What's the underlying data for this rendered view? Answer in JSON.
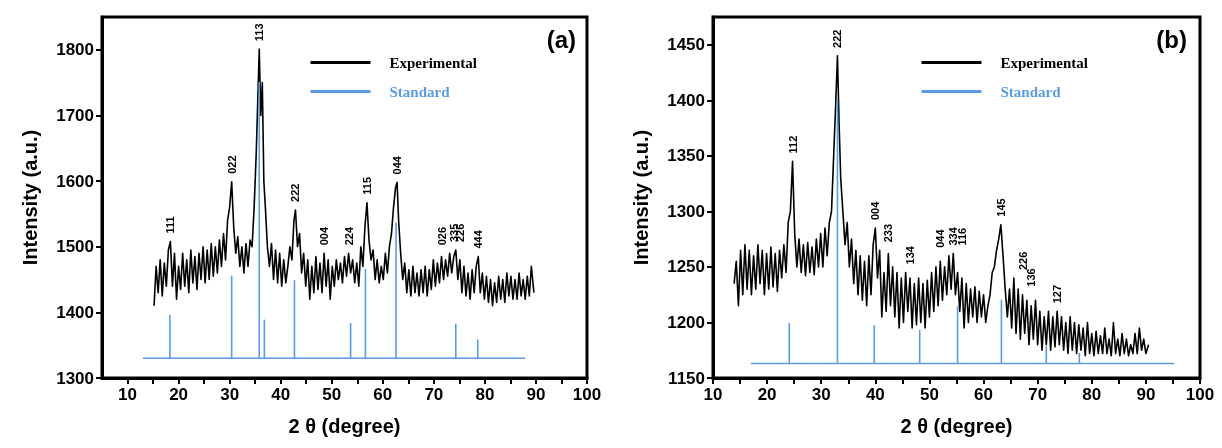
{
  "chart_data": [
    {
      "type": "line",
      "title": "(a)",
      "xlabel": "2 θ (degree)",
      "ylabel": "Intensity (a.u.)",
      "xlim": [
        5,
        100
      ],
      "ylim": [
        1300,
        1850
      ],
      "xticks": [
        10,
        {
          "value": 15,
          "label": null
        },
        20,
        {
          "value": 25,
          "label": null
        },
        30,
        {
          "value": 35,
          "label": null
        },
        40,
        {
          "value": 45,
          "label": null
        },
        50,
        {
          "value": 55,
          "label": null
        },
        60,
        {
          "value": 65,
          "label": null
        },
        70,
        {
          "value": 75,
          "label": null
        },
        80,
        {
          "value": 85,
          "label": null
        },
        90,
        {
          "value": 95,
          "label": null
        },
        100
      ],
      "yticks": [
        1300,
        1400,
        1500,
        1600,
        1700,
        1800
      ],
      "grid": false,
      "legend": "top",
      "marker": "none",
      "line_style": "solid",
      "series": [
        {
          "name": "Experimental",
          "color": "#000000",
          "x": [
            15.2,
            15.6,
            16.0,
            16.4,
            16.8,
            17.2,
            17.6,
            18.0,
            18.4,
            18.8,
            19.2,
            19.6,
            20.0,
            20.4,
            20.8,
            21.2,
            21.6,
            22.0,
            22.4,
            22.8,
            23.2,
            23.6,
            24.0,
            24.4,
            24.8,
            25.2,
            25.6,
            26.0,
            26.4,
            26.8,
            27.2,
            27.6,
            28.0,
            28.4,
            28.8,
            29.2,
            29.6,
            30.0,
            30.4,
            30.8,
            31.2,
            31.6,
            32.0,
            32.4,
            32.8,
            33.2,
            33.6,
            34.0,
            34.4,
            34.8,
            35.2,
            35.5,
            35.8,
            36.1,
            36.4,
            36.7,
            37.0,
            37.4,
            37.8,
            38.2,
            38.6,
            39.0,
            39.4,
            39.8,
            40.2,
            40.6,
            41.0,
            41.4,
            41.8,
            42.2,
            42.6,
            42.9,
            43.3,
            43.7,
            44.1,
            44.5,
            44.9,
            45.3,
            45.7,
            46.1,
            46.5,
            46.9,
            47.3,
            47.7,
            48.1,
            48.5,
            48.9,
            49.3,
            49.7,
            50.1,
            50.5,
            50.9,
            51.3,
            51.7,
            52.1,
            52.5,
            52.9,
            53.3,
            53.7,
            54.1,
            54.5,
            54.9,
            55.3,
            55.7,
            56.1,
            56.5,
            56.9,
            57.3,
            57.7,
            58.1,
            58.5,
            58.9,
            59.3,
            59.7,
            60.1,
            60.5,
            60.9,
            61.3,
            61.7,
            62.1,
            62.5,
            62.8,
            63.1,
            63.5,
            63.9,
            64.3,
            64.7,
            65.1,
            65.5,
            65.9,
            66.3,
            66.7,
            67.1,
            67.5,
            67.9,
            68.3,
            68.7,
            69.1,
            69.5,
            69.9,
            70.3,
            70.7,
            71.1,
            71.5,
            71.9,
            72.3,
            72.7,
            73.1,
            73.5,
            73.9,
            74.3,
            74.7,
            75.1,
            75.5,
            75.9,
            76.3,
            76.7,
            77.1,
            77.5,
            77.9,
            78.3,
            78.7,
            79.1,
            79.5,
            79.9,
            80.3,
            80.7,
            81.1,
            81.5,
            81.9,
            82.3,
            82.7,
            83.1,
            83.5,
            83.9,
            84.3,
            84.7,
            85.1,
            85.5,
            85.9,
            86.3,
            86.7,
            87.1,
            87.5,
            87.9,
            88.3,
            88.7,
            89.1,
            89.6
          ],
          "values": [
            1410,
            1470,
            1430,
            1480,
            1425,
            1475,
            1440,
            1495,
            1508,
            1440,
            1490,
            1420,
            1470,
            1435,
            1490,
            1440,
            1480,
            1430,
            1495,
            1445,
            1485,
            1435,
            1490,
            1450,
            1500,
            1445,
            1495,
            1450,
            1505,
            1455,
            1500,
            1460,
            1510,
            1470,
            1520,
            1480,
            1540,
            1560,
            1599,
            1530,
            1490,
            1515,
            1470,
            1500,
            1460,
            1505,
            1470,
            1510,
            1500,
            1560,
            1640,
            1720,
            1801,
            1700,
            1750,
            1600,
            1560,
            1500,
            1470,
            1505,
            1450,
            1495,
            1445,
            1490,
            1440,
            1480,
            1445,
            1470,
            1500,
            1480,
            1540,
            1556,
            1500,
            1520,
            1460,
            1490,
            1440,
            1480,
            1420,
            1470,
            1430,
            1485,
            1435,
            1475,
            1430,
            1490,
            1440,
            1480,
            1420,
            1470,
            1440,
            1480,
            1450,
            1475,
            1445,
            1485,
            1455,
            1490,
            1460,
            1480,
            1445,
            1475,
            1440,
            1500,
            1470,
            1530,
            1567,
            1510,
            1480,
            1495,
            1450,
            1480,
            1445,
            1470,
            1450,
            1490,
            1460,
            1500,
            1520,
            1560,
            1590,
            1598,
            1540,
            1490,
            1450,
            1475,
            1430,
            1465,
            1425,
            1470,
            1430,
            1460,
            1425,
            1465,
            1430,
            1470,
            1425,
            1465,
            1435,
            1480,
            1440,
            1475,
            1445,
            1485,
            1450,
            1480,
            1455,
            1490,
            1460,
            1485,
            1495,
            1450,
            1480,
            1430,
            1470,
            1425,
            1460,
            1420,
            1465,
            1430,
            1470,
            1485,
            1430,
            1460,
            1420,
            1455,
            1415,
            1450,
            1410,
            1445,
            1415,
            1455,
            1420,
            1450,
            1415,
            1460,
            1425,
            1455,
            1420,
            1450,
            1420,
            1460,
            1425,
            1450,
            1420,
            1455,
            1425,
            1470,
            1430
          ]
        },
        {
          "name": "Standard",
          "color": "#5b9be0",
          "x": [
            13.0,
            18.3,
            18.3,
            18.3,
            30.4,
            30.4,
            30.4,
            35.8,
            35.8,
            35.8,
            36.8,
            36.8,
            36.8,
            42.7,
            42.7,
            42.7,
            53.7,
            53.7,
            53.7,
            56.6,
            56.6,
            56.6,
            62.6,
            62.6,
            62.6,
            74.3,
            74.3,
            74.3,
            78.6,
            78.6,
            78.6,
            87.9
          ],
          "values": [
            1330,
            1330,
            1395,
            1330,
            1330,
            1455,
            1330,
            1330,
            1750,
            1330,
            1330,
            1388,
            1330,
            1330,
            1448,
            1330,
            1330,
            1383,
            1330,
            1330,
            1465,
            1330,
            1330,
            1536,
            1330,
            1330,
            1382,
            1330,
            1330,
            1358,
            1330,
            1330
          ]
        }
      ],
      "annotations": [
        {
          "text": "111",
          "x": 18.4,
          "y": 1508
        },
        {
          "text": "022",
          "x": 30.4,
          "y": 1599
        },
        {
          "text": "113",
          "x": 35.8,
          "y": 1801
        },
        {
          "text": "222",
          "x": 42.9,
          "y": 1556
        },
        {
          "text": "004",
          "x": 48.5,
          "y": 1490
        },
        {
          "text": "224",
          "x": 53.3,
          "y": 1490
        },
        {
          "text": "115",
          "x": 56.9,
          "y": 1567
        },
        {
          "text": "044",
          "x": 62.8,
          "y": 1598
        },
        {
          "text": "026",
          "x": 71.5,
          "y": 1485
        },
        {
          "text": "335",
          "x": 73.9,
          "y": 1485
        },
        {
          "text": "226",
          "x": 75.1,
          "y": 1480
        },
        {
          "text": "444",
          "x": 78.7,
          "y": 1485
        }
      ]
    },
    {
      "type": "line",
      "title": "(b)",
      "xlabel": "2 θ (degree)",
      "ylabel": "Intensity (a.u.)",
      "xlim": [
        10,
        100
      ],
      "ylim": [
        1150,
        1475
      ],
      "xticks": [
        10,
        {
          "value": 15,
          "label": null
        },
        20,
        {
          "value": 25,
          "label": null
        },
        30,
        {
          "value": 35,
          "label": null
        },
        40,
        {
          "value": 45,
          "label": null
        },
        50,
        {
          "value": 55,
          "label": null
        },
        60,
        {
          "value": 65,
          "label": null
        },
        70,
        {
          "value": 75,
          "label": null
        },
        80,
        {
          "value": 85,
          "label": null
        },
        90,
        {
          "value": 95,
          "label": null
        },
        100
      ],
      "yticks": [
        1150,
        1200,
        1250,
        1300,
        1350,
        1400,
        1450
      ],
      "grid": false,
      "legend": "top",
      "marker": "none",
      "line_style": "solid",
      "series": [
        {
          "name": "Experimental",
          "color": "#000000",
          "x": [
            13.9,
            14.3,
            14.7,
            15.1,
            15.5,
            15.9,
            16.3,
            16.7,
            17.1,
            17.5,
            17.9,
            18.3,
            18.7,
            19.1,
            19.5,
            19.9,
            20.3,
            20.7,
            21.1,
            21.5,
            21.9,
            22.3,
            22.7,
            23.1,
            23.5,
            23.9,
            24.3,
            24.7,
            25.1,
            25.5,
            25.9,
            26.3,
            26.7,
            27.1,
            27.5,
            27.9,
            28.3,
            28.7,
            29.1,
            29.5,
            29.9,
            30.3,
            30.7,
            31.1,
            31.5,
            31.9,
            32.3,
            32.7,
            33.0,
            33.3,
            33.6,
            34.0,
            34.4,
            34.8,
            35.2,
            35.6,
            36.0,
            36.4,
            36.8,
            37.2,
            37.6,
            38.0,
            38.4,
            38.8,
            39.2,
            39.6,
            40.0,
            40.4,
            40.8,
            41.2,
            41.6,
            42.0,
            42.4,
            42.8,
            43.2,
            43.6,
            44.0,
            44.4,
            44.8,
            45.2,
            45.6,
            46.0,
            46.4,
            46.8,
            47.2,
            47.6,
            48.0,
            48.4,
            48.8,
            49.2,
            49.6,
            50.0,
            50.4,
            50.8,
            51.2,
            51.6,
            52.0,
            52.4,
            52.8,
            53.2,
            53.6,
            54.0,
            54.4,
            54.8,
            55.2,
            55.6,
            56.0,
            56.4,
            56.8,
            57.2,
            57.6,
            58.0,
            58.4,
            58.8,
            59.2,
            59.6,
            60.0,
            60.4,
            60.8,
            61.2,
            61.6,
            62.0,
            62.4,
            62.8,
            63.2,
            63.6,
            64.0,
            64.4,
            64.8,
            65.2,
            65.6,
            66.0,
            66.4,
            66.8,
            67.2,
            67.6,
            68.0,
            68.4,
            68.8,
            69.2,
            69.6,
            70.0,
            70.4,
            70.8,
            71.2,
            71.6,
            72.0,
            72.4,
            72.8,
            73.2,
            73.6,
            74.0,
            74.4,
            74.8,
            75.2,
            75.6,
            76.0,
            76.4,
            76.8,
            77.2,
            77.6,
            78.0,
            78.4,
            78.8,
            79.2,
            79.6,
            80.0,
            80.4,
            80.8,
            81.2,
            81.6,
            82.0,
            82.4,
            82.8,
            83.2,
            83.6,
            84.0,
            84.4,
            84.8,
            85.2,
            85.6,
            86.0,
            86.4,
            86.8,
            87.2,
            87.6,
            88.0,
            88.4,
            88.8,
            89.2,
            89.6,
            90.0,
            90.5
          ],
          "values": [
            1235,
            1255,
            1215,
            1265,
            1225,
            1270,
            1230,
            1265,
            1225,
            1260,
            1230,
            1270,
            1235,
            1265,
            1225,
            1262,
            1230,
            1268,
            1232,
            1262,
            1228,
            1265,
            1240,
            1270,
            1245,
            1290,
            1300,
            1345,
            1280,
            1250,
            1275,
            1245,
            1270,
            1242,
            1272,
            1245,
            1268,
            1243,
            1275,
            1250,
            1280,
            1250,
            1285,
            1260,
            1290,
            1300,
            1350,
            1400,
            1440,
            1380,
            1330,
            1300,
            1270,
            1290,
            1250,
            1275,
            1235,
            1265,
            1225,
            1260,
            1220,
            1255,
            1215,
            1260,
            1225,
            1270,
            1285,
            1240,
            1265,
            1205,
            1245,
            1210,
            1262,
            1215,
            1250,
            1205,
            1245,
            1195,
            1240,
            1200,
            1245,
            1210,
            1240,
            1195,
            1235,
            1198,
            1240,
            1200,
            1235,
            1195,
            1238,
            1205,
            1245,
            1210,
            1250,
            1215,
            1255,
            1220,
            1250,
            1225,
            1260,
            1230,
            1262,
            1225,
            1245,
            1210,
            1240,
            1195,
            1235,
            1200,
            1230,
            1205,
            1232,
            1200,
            1228,
            1205,
            1225,
            1200,
            1215,
            1225,
            1245,
            1250,
            1265,
            1275,
            1288,
            1260,
            1230,
            1205,
            1230,
            1195,
            1240,
            1190,
            1230,
            1185,
            1225,
            1190,
            1220,
            1180,
            1215,
            1185,
            1220,
            1180,
            1210,
            1175,
            1205,
            1180,
            1210,
            1175,
            1205,
            1178,
            1210,
            1180,
            1205,
            1175,
            1200,
            1172,
            1205,
            1175,
            1200,
            1172,
            1198,
            1175,
            1195,
            1170,
            1200,
            1172,
            1190,
            1170,
            1192,
            1172,
            1188,
            1172,
            1195,
            1172,
            1185,
            1170,
            1200,
            1172,
            1185,
            1170,
            1190,
            1172,
            1185,
            1170,
            1180,
            1172,
            1190,
            1172,
            1195,
            1175,
            1185,
            1172,
            1180
          ]
        },
        {
          "name": "Standard",
          "color": "#5b9be0",
          "x": [
            17.0,
            24.1,
            24.1,
            24.1,
            33.0,
            33.0,
            33.0,
            39.8,
            39.8,
            39.8,
            48.2,
            48.2,
            48.2,
            55.2,
            55.2,
            55.2,
            63.3,
            63.3,
            63.3,
            71.6,
            71.6,
            71.6,
            77.7,
            77.7,
            77.7,
            95.2
          ],
          "values": [
            1163,
            1163,
            1199,
            1163,
            1163,
            1400,
            1163,
            1163,
            1197,
            1163,
            1163,
            1193,
            1163,
            1163,
            1214,
            1163,
            1163,
            1220,
            1163,
            1163,
            1178,
            1163,
            1163,
            1172,
            1163,
            1163
          ]
        }
      ],
      "annotations": [
        {
          "text": "112",
          "x": 24.7,
          "y": 1345
        },
        {
          "text": "222",
          "x": 33.0,
          "y": 1440
        },
        {
          "text": "004",
          "x": 40.0,
          "y": 1285
        },
        {
          "text": "233",
          "x": 42.4,
          "y": 1262
        },
        {
          "text": "134",
          "x": 46.4,
          "y": 1240
        },
        {
          "text": "044",
          "x": 52.0,
          "y": 1255
        },
        {
          "text": "334",
          "x": 54.4,
          "y": 1262
        },
        {
          "text": "116",
          "x": 56.0,
          "y": 1240
        },
        {
          "text": "145",
          "x": 63.2,
          "y": 1288
        },
        {
          "text": "226",
          "x": 67.2,
          "y": 1225
        },
        {
          "text": "136",
          "x": 68.8,
          "y": 1215
        },
        {
          "text": "127",
          "x": 73.6,
          "y": 1210
        }
      ]
    }
  ]
}
